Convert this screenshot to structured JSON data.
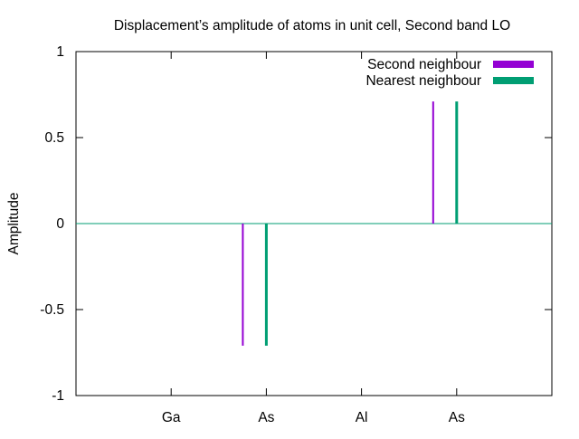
{
  "chart_data": {
    "type": "bar",
    "title": "Displacement’s amplitude of atoms in unit cell, Second band LO",
    "xlabel": "",
    "ylabel": "Amplitude",
    "categories": [
      "Ga",
      "As",
      "Al",
      "As"
    ],
    "series": [
      {
        "name": "Second neighbour",
        "color": "#9400d3",
        "values": [
          0,
          -0.71,
          0,
          0.71
        ]
      },
      {
        "name": "Nearest neighbour",
        "color": "#009e73",
        "values": [
          0,
          -0.71,
          0,
          0.71
        ]
      }
    ],
    "ylim": [
      -1,
      1
    ],
    "yticks": [
      {
        "value": 1,
        "label": "1"
      },
      {
        "value": 0.5,
        "label": "0.5"
      },
      {
        "value": 0,
        "label": "0"
      },
      {
        "value": -0.5,
        "label": "-0.5"
      },
      {
        "value": -1,
        "label": "-1"
      }
    ],
    "zero_line_color": "#009e73",
    "grid": false,
    "legend_position": "top-right"
  }
}
